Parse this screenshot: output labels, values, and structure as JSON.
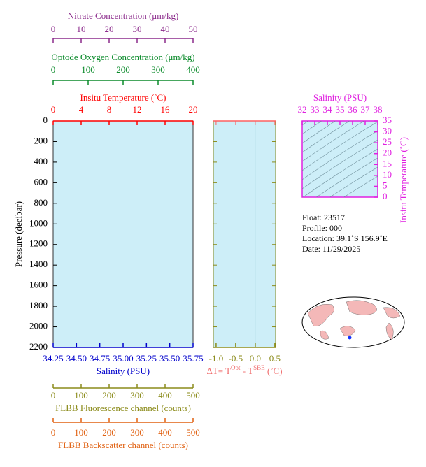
{
  "chart_data": [
    {
      "type": "line",
      "ylabel": "Pressure (decibar)",
      "ylim": [
        0,
        2200
      ],
      "y_reversed": true,
      "yticks": [
        0,
        200,
        400,
        600,
        800,
        1000,
        1200,
        1400,
        1600,
        1800,
        2000,
        2200
      ],
      "background": "#cdeef8",
      "x_axes": [
        {
          "label": "Nitrate Concentration (μm/kg)",
          "xlim": [
            0,
            50
          ],
          "xticks": [
            0,
            10,
            20,
            30,
            40,
            50
          ],
          "color": "#8b2a8b",
          "position": "top"
        },
        {
          "label": "Optode Oxygen Concentration (μm/kg)",
          "xlim": [
            0,
            400
          ],
          "xticks": [
            0,
            100,
            200,
            300,
            400
          ],
          "color": "#0a8a2a",
          "position": "top"
        },
        {
          "label": "Insitu Temperature (˚C)",
          "xlim": [
            0,
            20
          ],
          "xticks": [
            0,
            4,
            8,
            12,
            16,
            20
          ],
          "color": "#ff0000",
          "position": "top"
        },
        {
          "label": "Salinity (PSU)",
          "xlim": [
            34.25,
            35.75
          ],
          "xticks": [
            {
              "value": 34.25,
              "label": "34.25"
            },
            {
              "value": 34.5,
              "label": "34.50"
            },
            34.75,
            {
              "value": 35,
              "label": "35.00"
            },
            35.25,
            {
              "value": 35.5,
              "label": "35.50"
            },
            35.75
          ],
          "color": "#0000cc",
          "position": "bottom"
        },
        {
          "label": "FLBB Fluorescence channel (counts)",
          "xlim": [
            0,
            500
          ],
          "xticks": [
            0,
            100,
            200,
            300,
            400,
            500
          ],
          "color": "#8b8b1a",
          "position": "bottom"
        },
        {
          "label": "FLBB Backscatter channel (counts)",
          "xlim": [
            0,
            500
          ],
          "xticks": [
            0,
            100,
            200,
            300,
            400,
            500
          ],
          "color": "#e06010",
          "position": "bottom"
        }
      ]
    },
    {
      "type": "line",
      "xlabel": [
        "ΔT= T",
        "Opt",
        " - T",
        "SBE",
        " (˚C)"
      ],
      "xlim": [
        -1.07,
        0.52
      ],
      "xticks": [
        {
          "value": -1,
          "label": "-1.0"
        },
        -0.5,
        {
          "value": 0,
          "label": "0.0"
        },
        0.5
      ],
      "color": "#8b8b1a",
      "top_color": "#ff6060",
      "label_color": "#f07070",
      "background": "#cdeef8",
      "zero_line": true
    },
    {
      "type": "scatter",
      "xlabel": "Salinity (PSU)",
      "ylabel": "Insitu Temperature (˚C)",
      "xlim": [
        32,
        38
      ],
      "xticks": [
        32,
        33,
        34,
        35,
        36,
        37,
        38
      ],
      "ylim": [
        0,
        35
      ],
      "yticks": [
        0,
        5,
        10,
        15,
        20,
        25,
        30,
        35
      ],
      "color": "#e020e0",
      "background": "#cdeef8"
    }
  ],
  "info": [
    "Float:  23517",
    "Profile:  000",
    "Location:  39.1˚S  156.9˚E",
    "Date:  11/29/2025"
  ]
}
